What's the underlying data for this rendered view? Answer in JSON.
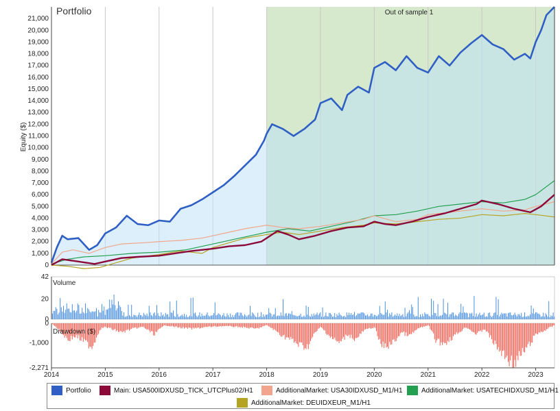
{
  "chart_data": {
    "type": "line",
    "title": "Portfolio",
    "oos_label": "Out of sample 1",
    "x_range": [
      2014.0,
      2023.35
    ],
    "x_ticks": [
      "2014",
      "2015",
      "2016",
      "2017",
      "2018",
      "2019",
      "2020",
      "2021",
      "2022",
      "2023"
    ],
    "oos_start": 2018.0,
    "equity": {
      "ylabel": "Equity ($)",
      "ylim": [
        0,
        22000
      ],
      "y_ticks": [
        "0",
        "1,000",
        "2,000",
        "3,000",
        "4,000",
        "5,000",
        "6,000",
        "7,000",
        "8,000",
        "9,000",
        "10,000",
        "11,000",
        "12,000",
        "13,000",
        "14,000",
        "15,000",
        "16,000",
        "17,000",
        "18,000",
        "19,000",
        "20,000",
        "21,000"
      ],
      "series": [
        {
          "name": "Portfolio",
          "color": "#2f5fc4",
          "x": [
            2014.0,
            2014.1,
            2014.2,
            2014.3,
            2014.5,
            2014.7,
            2014.85,
            2015.0,
            2015.2,
            2015.4,
            2015.6,
            2015.8,
            2016.0,
            2016.2,
            2016.4,
            2016.6,
            2016.8,
            2017.0,
            2017.2,
            2017.4,
            2017.6,
            2017.8,
            2017.95,
            2018.0,
            2018.1,
            2018.3,
            2018.5,
            2018.7,
            2018.9,
            2019.0,
            2019.2,
            2019.4,
            2019.5,
            2019.7,
            2019.9,
            2020.0,
            2020.2,
            2020.4,
            2020.6,
            2020.8,
            2021.0,
            2021.2,
            2021.4,
            2021.6,
            2021.8,
            2022.0,
            2022.2,
            2022.4,
            2022.6,
            2022.8,
            2022.9,
            2023.0,
            2023.1,
            2023.2,
            2023.35
          ],
          "y": [
            200,
            1500,
            2500,
            2200,
            2300,
            1300,
            1700,
            2700,
            3200,
            4200,
            3500,
            3400,
            3800,
            3700,
            4800,
            5100,
            5600,
            6200,
            6800,
            7600,
            8500,
            9400,
            10600,
            11200,
            12000,
            11600,
            11000,
            11600,
            12400,
            13800,
            14200,
            13200,
            14500,
            15200,
            14700,
            16800,
            17300,
            16600,
            17800,
            16800,
            16400,
            17800,
            17000,
            18100,
            18900,
            19600,
            18800,
            18400,
            17500,
            18000,
            17600,
            19000,
            20000,
            21300,
            22000
          ]
        },
        {
          "name": "Main: USA500IDXUSD_TICK_UTCPlus02/H1",
          "color": "#8b0a3a",
          "x": [
            2014.0,
            2014.2,
            2014.5,
            2014.8,
            2015.0,
            2015.3,
            2015.6,
            2016.0,
            2016.3,
            2016.6,
            2017.0,
            2017.3,
            2017.6,
            2017.9,
            2018.0,
            2018.2,
            2018.4,
            2018.6,
            2018.9,
            2019.2,
            2019.5,
            2019.8,
            2020.0,
            2020.2,
            2020.4,
            2020.7,
            2021.0,
            2021.3,
            2021.6,
            2021.9,
            2022.0,
            2022.3,
            2022.6,
            2022.9,
            2023.1,
            2023.35
          ],
          "y": [
            0,
            500,
            300,
            100,
            300,
            600,
            700,
            800,
            1000,
            1200,
            1400,
            1600,
            1700,
            2000,
            2300,
            2900,
            2600,
            2200,
            2500,
            2900,
            3200,
            3300,
            3700,
            3500,
            3400,
            3700,
            4100,
            4400,
            4800,
            5200,
            5500,
            5200,
            4800,
            4500,
            5000,
            6000
          ]
        },
        {
          "name": "AdditionalMarket: USA30IDXUSD_M1/H1",
          "color": "#f2a58c",
          "x": [
            2014.0,
            2014.2,
            2014.4,
            2014.7,
            2015.0,
            2015.3,
            2015.7,
            2016.0,
            2016.4,
            2016.8,
            2017.0,
            2017.3,
            2017.6,
            2018.0,
            2018.3,
            2018.6,
            2019.0,
            2019.4,
            2019.8,
            2020.0,
            2020.4,
            2020.8,
            2021.0,
            2021.4,
            2021.8,
            2022.0,
            2022.4,
            2022.8,
            2023.0,
            2023.35
          ],
          "y": [
            100,
            1100,
            1300,
            1000,
            1500,
            1800,
            1900,
            2000,
            2100,
            2300,
            2500,
            2800,
            3100,
            3400,
            3200,
            3100,
            3300,
            3600,
            3900,
            4200,
            3700,
            3900,
            4300,
            4500,
            4700,
            4800,
            4600,
            4700,
            5000,
            5400
          ]
        },
        {
          "name": "AdditionalMarket: USATECHIDXUSD_M1/H1",
          "color": "#22a050",
          "x": [
            2014.0,
            2014.3,
            2014.6,
            2015.0,
            2015.5,
            2016.0,
            2016.5,
            2017.0,
            2017.5,
            2018.0,
            2018.4,
            2018.8,
            2019.2,
            2019.6,
            2020.0,
            2020.4,
            2020.8,
            2021.2,
            2021.6,
            2022.0,
            2022.4,
            2022.8,
            2023.0,
            2023.35
          ],
          "y": [
            100,
            500,
            700,
            800,
            1000,
            1100,
            1300,
            1800,
            2300,
            2800,
            3100,
            2900,
            3300,
            3700,
            4200,
            4300,
            4600,
            5000,
            5200,
            5400,
            5300,
            5600,
            6000,
            7200
          ]
        },
        {
          "name": "AdditionalMarket: DEUIDXEUR_M1/H1",
          "color": "#b5a424",
          "x": [
            2014.0,
            2014.3,
            2014.6,
            2014.9,
            2015.2,
            2015.5,
            2016.0,
            2016.4,
            2016.8,
            2017.0,
            2017.3,
            2017.6,
            2018.0,
            2018.3,
            2018.6,
            2019.0,
            2019.4,
            2019.8,
            2020.0,
            2020.4,
            2020.8,
            2021.2,
            2021.6,
            2022.0,
            2022.4,
            2022.8,
            2023.0,
            2023.35
          ],
          "y": [
            0,
            -100,
            -300,
            -200,
            200,
            600,
            900,
            1200,
            1000,
            1500,
            1900,
            2300,
            2600,
            2800,
            2600,
            2900,
            3200,
            3400,
            3600,
            3500,
            3700,
            3900,
            4000,
            4300,
            4200,
            4400,
            4300,
            4100
          ]
        }
      ]
    },
    "volume": {
      "ylabel": "Volume",
      "ylim": [
        0,
        42
      ],
      "y_ticks": [
        "42",
        "20",
        "0"
      ],
      "color": "#4a8fe0"
    },
    "drawdown": {
      "ylabel": "Drawdown ($)",
      "ylim": [
        -2271,
        0
      ],
      "y_ticks": [
        "0",
        "-1,000",
        "-2,271"
      ],
      "color": "#f25c4f",
      "x": [
        2014.0,
        2014.15,
        2014.3,
        2014.45,
        2014.6,
        2014.75,
        2014.9,
        2015.0,
        2015.3,
        2015.5,
        2015.7,
        2015.9,
        2016.1,
        2016.3,
        2016.6,
        2016.9,
        2017.2,
        2017.5,
        2017.8,
        2018.0,
        2018.15,
        2018.3,
        2018.45,
        2018.6,
        2018.75,
        2018.9,
        2019.0,
        2019.2,
        2019.35,
        2019.5,
        2019.65,
        2019.8,
        2020.0,
        2020.1,
        2020.2,
        2020.35,
        2020.5,
        2020.65,
        2020.8,
        2021.0,
        2021.15,
        2021.3,
        2021.5,
        2021.7,
        2021.9,
        2022.05,
        2022.2,
        2022.35,
        2022.5,
        2022.6,
        2022.7,
        2022.85,
        2023.0,
        2023.15,
        2023.35
      ],
      "y": [
        0,
        -400,
        -900,
        -700,
        -1000,
        -1300,
        -300,
        -200,
        -500,
        -300,
        -200,
        -600,
        -100,
        -200,
        -300,
        -200,
        -150,
        -200,
        -300,
        -100,
        -400,
        -700,
        -900,
        -1200,
        -1300,
        -500,
        -200,
        -800,
        -1100,
        -600,
        -900,
        -400,
        -200,
        -1100,
        -1300,
        -1050,
        -500,
        -700,
        -300,
        -100,
        -1000,
        -1100,
        -650,
        -200,
        -600,
        -300,
        -1000,
        -1600,
        -2000,
        -2271,
        -1800,
        -1300,
        -600,
        -400,
        -100
      ]
    },
    "legend_position": "bottom"
  }
}
